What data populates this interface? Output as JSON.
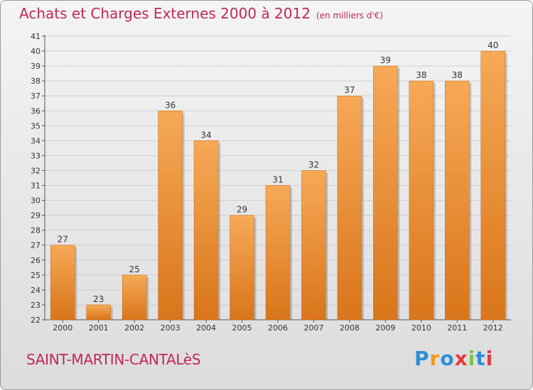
{
  "title": "Achats et Charges Externes 2000 à 2012",
  "subtitle": "(en milliers d'€)",
  "place_name": "SAINT-MARTIN-CANTALèS",
  "logo": {
    "letters": [
      "P",
      "r",
      "o",
      "x",
      "i",
      "t",
      "i"
    ],
    "colors": [
      "#2b8fd6",
      "#f39a1f",
      "#2b8fd6",
      "#e8393a",
      "#7cc242",
      "#2b8fd6",
      "#e8393a"
    ]
  },
  "colors": {
    "bar_top": "#f6a957",
    "bar_bottom": "#d9751a",
    "title": "#c0285a",
    "grid": "#cfcfcf"
  },
  "chart_data": {
    "type": "bar",
    "categories": [
      "2000",
      "2001",
      "2002",
      "2003",
      "2004",
      "2005",
      "2006",
      "2007",
      "2008",
      "2009",
      "2010",
      "2011",
      "2012"
    ],
    "values": [
      27,
      23,
      25,
      36,
      34,
      29,
      31,
      32,
      37,
      39,
      38,
      38,
      40
    ],
    "ylim": [
      22,
      41
    ],
    "yticks": [
      22,
      23,
      24,
      25,
      26,
      27,
      28,
      29,
      30,
      31,
      32,
      33,
      34,
      35,
      36,
      37,
      38,
      39,
      40,
      41
    ],
    "grid": true
  }
}
